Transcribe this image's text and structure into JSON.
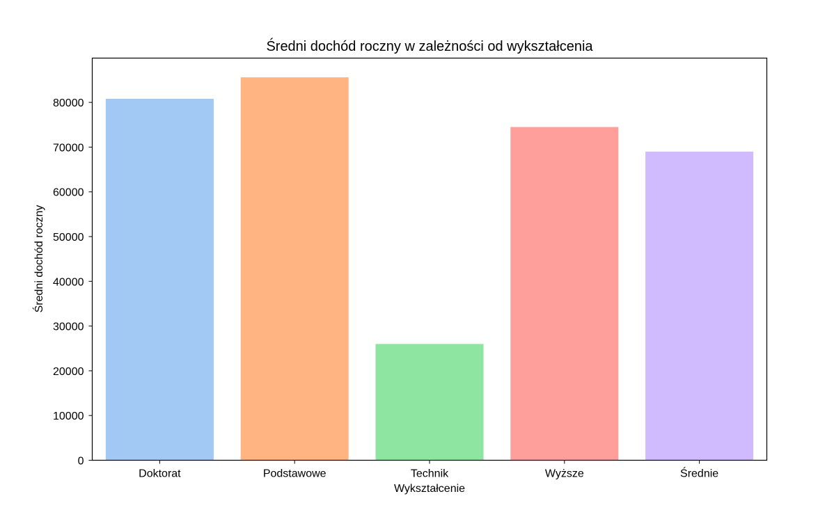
{
  "chart_data": {
    "type": "bar",
    "title": "Średni dochód roczny w zależności od wykształcenia",
    "xlabel": "Wykształcenie",
    "ylabel": "Średni dochód roczny",
    "categories": [
      "Doktorat",
      "Podstawowe",
      "Technik",
      "Wyższe",
      "Średnie"
    ],
    "values": [
      80800,
      85600,
      26000,
      74500,
      69000
    ],
    "colors": [
      "#a1c9f4",
      "#ffb482",
      "#8de5a1",
      "#ff9f9b",
      "#d0bbff"
    ],
    "ylim": [
      0,
      89900
    ],
    "yticks": [
      0,
      10000,
      20000,
      30000,
      40000,
      50000,
      60000,
      70000,
      80000
    ],
    "ytick_labels": [
      "0",
      "10000",
      "20000",
      "30000",
      "40000",
      "50000",
      "60000",
      "70000",
      "80000"
    ],
    "grid": false,
    "legend": "none"
  }
}
